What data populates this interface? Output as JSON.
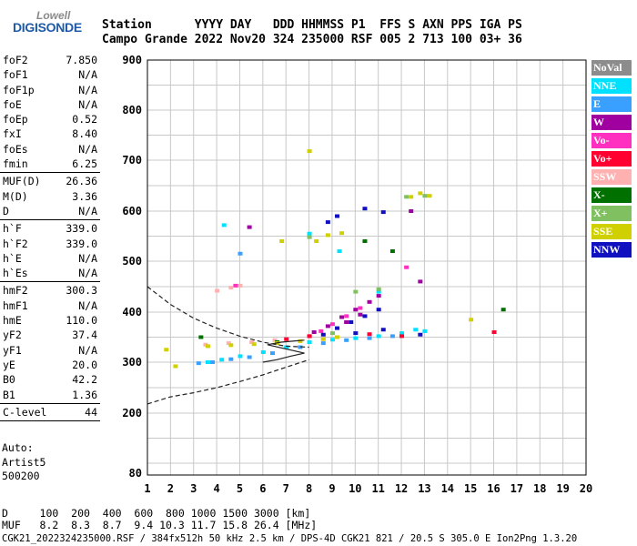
{
  "logo": {
    "line1": "Lowell",
    "line2": "DIGISONDE"
  },
  "header": {
    "line1": "Station      YYYY DAY   DDD HHMMSS P1  FFS S AXN PPS IGA PS",
    "line2": "Campo Grande 2022 Nov20 324 235000 RSF 005 2 713 100 03+ 36"
  },
  "params": {
    "group1": [
      {
        "name": "foF2",
        "value": "7.850"
      },
      {
        "name": "foF1",
        "value": "N/A"
      },
      {
        "name": "foF1p",
        "value": "N/A"
      },
      {
        "name": "foE",
        "value": "N/A"
      },
      {
        "name": "foEp",
        "value": "0.52"
      },
      {
        "name": "fxI",
        "value": "8.40"
      },
      {
        "name": "foEs",
        "value": "N/A"
      },
      {
        "name": "fmin",
        "value": "6.25"
      }
    ],
    "group2": [
      {
        "name": "MUF(D)",
        "value": "26.36"
      },
      {
        "name": "M(D)",
        "value": "3.36"
      },
      {
        "name": "D",
        "value": "N/A"
      }
    ],
    "group3": [
      {
        "name": "h`F",
        "value": "339.0"
      },
      {
        "name": "h`F2",
        "value": "339.0"
      },
      {
        "name": "h`E",
        "value": "N/A"
      },
      {
        "name": "h`Es",
        "value": "N/A"
      }
    ],
    "group4": [
      {
        "name": "hmF2",
        "value": "300.3"
      },
      {
        "name": "hmF1",
        "value": "N/A"
      },
      {
        "name": "hmE",
        "value": "110.0"
      },
      {
        "name": "yF2",
        "value": "37.4"
      },
      {
        "name": "yF1",
        "value": "N/A"
      },
      {
        "name": "yE",
        "value": "20.0"
      },
      {
        "name": "B0",
        "value": "42.2"
      },
      {
        "name": "B1",
        "value": "1.36"
      }
    ],
    "group5": [
      {
        "name": "C-level",
        "value": "44"
      }
    ]
  },
  "auto": {
    "line1": "Auto:",
    "line2": "Artist5",
    "line3": "500200"
  },
  "legend": [
    {
      "label": "NoVal",
      "color": "#8c8c8c"
    },
    {
      "label": "NNE",
      "color": "#00e0ff"
    },
    {
      "label": "E",
      "color": "#3aa0ff"
    },
    {
      "label": "W",
      "color": "#a000a0"
    },
    {
      "label": "Vo-",
      "color": "#ff30c0"
    },
    {
      "label": "Vo+",
      "color": "#ff0030"
    },
    {
      "label": "SSW",
      "color": "#ffb0b0"
    },
    {
      "label": "X-",
      "color": "#007000"
    },
    {
      "label": "X+",
      "color": "#80c060"
    },
    {
      "label": "SSE",
      "color": "#d0d000"
    },
    {
      "label": "NNW",
      "color": "#1010c0"
    }
  ],
  "footer": {
    "line1": "D     100  200  400  600  800 1000 1500 3000 [km]",
    "line2": "MUF   8.2  8.3  8.7  9.4 10.3 11.7 15.8 26.4 [MHz]",
    "line3": "CGK21_2022324235000.RSF / 384fx512h 50 kHz 2.5 km / DPS-4D CGK21 821 / 20.5 S 305.0 E Ion2Png 1.3.20"
  },
  "chart_data": {
    "type": "scatter",
    "xlabel": "",
    "ylabel": "",
    "x_ticks": [
      "1",
      "2",
      "3",
      "4",
      "5",
      "6",
      "7",
      "8",
      "9",
      "10",
      "11",
      "12",
      "13",
      "14",
      "15",
      "16",
      "17",
      "18",
      "19",
      "20"
    ],
    "y_ticks": [
      "80",
      "200",
      "300",
      "400",
      "500",
      "600",
      "700",
      "800",
      "900"
    ],
    "xlim": [
      1,
      20
    ],
    "ylim": [
      80,
      900
    ],
    "y_scale": "ionogram-nonlinear",
    "grid": true,
    "series": [
      {
        "name": "NNE",
        "color": "#00e0ff",
        "points": [
          [
            3.6,
            300
          ],
          [
            4.2,
            305
          ],
          [
            5.0,
            312
          ],
          [
            6.0,
            320
          ],
          [
            7.0,
            330
          ],
          [
            8.0,
            340
          ],
          [
            9.0,
            345
          ],
          [
            10.0,
            348
          ],
          [
            11.0,
            352
          ],
          [
            12.0,
            358
          ],
          [
            12.6,
            365
          ],
          [
            13.0,
            362
          ],
          [
            4.3,
            572
          ],
          [
            8.0,
            555
          ],
          [
            9.3,
            520
          ],
          [
            11.0,
            440
          ]
        ]
      },
      {
        "name": "E",
        "color": "#3aa0ff",
        "points": [
          [
            3.2,
            298
          ],
          [
            3.8,
            300
          ],
          [
            4.6,
            306
          ],
          [
            5.4,
            310
          ],
          [
            6.4,
            318
          ],
          [
            7.6,
            330
          ],
          [
            8.6,
            338
          ],
          [
            9.6,
            344
          ],
          [
            10.6,
            348
          ],
          [
            11.6,
            352
          ],
          [
            5.0,
            515
          ]
        ]
      },
      {
        "name": "W",
        "color": "#a000a0",
        "points": [
          [
            8.2,
            360
          ],
          [
            8.8,
            372
          ],
          [
            9.4,
            390
          ],
          [
            10.0,
            405
          ],
          [
            10.6,
            420
          ],
          [
            11.0,
            432
          ],
          [
            9.6,
            380
          ],
          [
            10.2,
            395
          ],
          [
            5.4,
            568
          ],
          [
            12.8,
            460
          ],
          [
            12.4,
            600
          ]
        ]
      },
      {
        "name": "Vo-",
        "color": "#ff30c0",
        "points": [
          [
            8.0,
            352
          ],
          [
            8.5,
            362
          ],
          [
            9.0,
            376
          ],
          [
            9.6,
            392
          ],
          [
            10.2,
            408
          ],
          [
            12.2,
            488
          ],
          [
            4.8,
            452
          ]
        ]
      },
      {
        "name": "Vo+",
        "color": "#ff0030",
        "points": [
          [
            7.0,
            346
          ],
          [
            8.0,
            352
          ],
          [
            10.6,
            356
          ],
          [
            12.0,
            352
          ],
          [
            16.0,
            360
          ]
        ]
      },
      {
        "name": "SSW",
        "color": "#ffb0b0",
        "points": [
          [
            4.0,
            442
          ],
          [
            4.6,
            448
          ],
          [
            5.0,
            452
          ],
          [
            3.5,
            335
          ],
          [
            4.5,
            338
          ],
          [
            5.5,
            340
          ],
          [
            6.5,
            344
          ],
          [
            8.6,
            346
          ]
        ]
      },
      {
        "name": "X-",
        "color": "#007000",
        "points": [
          [
            3.3,
            350
          ],
          [
            6.6,
            340
          ],
          [
            10.4,
            540
          ],
          [
            11.6,
            520
          ],
          [
            16.4,
            405
          ]
        ]
      },
      {
        "name": "X+",
        "color": "#80c060",
        "points": [
          [
            9.0,
            358
          ],
          [
            10.0,
            440
          ],
          [
            11.0,
            445
          ],
          [
            13.0,
            630
          ],
          [
            12.2,
            628
          ],
          [
            8.0,
            548
          ]
        ]
      },
      {
        "name": "SSE",
        "color": "#d0d000",
        "points": [
          [
            3.6,
            332
          ],
          [
            4.6,
            334
          ],
          [
            5.6,
            336
          ],
          [
            6.6,
            338
          ],
          [
            7.6,
            342
          ],
          [
            8.6,
            346
          ],
          [
            9.2,
            350
          ],
          [
            8.0,
            718
          ],
          [
            8.3,
            540
          ],
          [
            8.8,
            552
          ],
          [
            9.4,
            556
          ],
          [
            12.4,
            628
          ],
          [
            12.8,
            635
          ],
          [
            13.2,
            630
          ],
          [
            6.8,
            540
          ],
          [
            15.0,
            385
          ],
          [
            1.8,
            325
          ],
          [
            2.2,
            292
          ]
        ]
      },
      {
        "name": "NNW",
        "color": "#1010c0",
        "points": [
          [
            8.6,
            355
          ],
          [
            9.2,
            368
          ],
          [
            9.8,
            380
          ],
          [
            10.4,
            392
          ],
          [
            11.0,
            405
          ],
          [
            10.0,
            358
          ],
          [
            11.2,
            365
          ],
          [
            12.8,
            355
          ],
          [
            9.2,
            590
          ],
          [
            10.4,
            605
          ],
          [
            11.2,
            598
          ],
          [
            8.8,
            578
          ]
        ]
      }
    ],
    "profile_lines": [
      {
        "name": "upper_dashed",
        "points": [
          [
            1,
            450
          ],
          [
            2,
            415
          ],
          [
            3,
            388
          ],
          [
            4,
            368
          ],
          [
            5,
            352
          ],
          [
            6,
            340
          ],
          [
            7,
            332
          ],
          [
            8,
            330
          ]
        ]
      },
      {
        "name": "lower_dashed",
        "points": [
          [
            1,
            218
          ],
          [
            2,
            232
          ],
          [
            3,
            240
          ],
          [
            4,
            250
          ],
          [
            5,
            262
          ],
          [
            6,
            275
          ],
          [
            7,
            290
          ],
          [
            8,
            305
          ]
        ]
      },
      {
        "name": "trace_solid",
        "points": [
          [
            6,
            300
          ],
          [
            6.6,
            305
          ],
          [
            7.2,
            312
          ],
          [
            7.8,
            318
          ],
          [
            6.2,
            335
          ],
          [
            6.8,
            340
          ],
          [
            7.3,
            342
          ],
          [
            7.8,
            344
          ]
        ]
      }
    ]
  }
}
